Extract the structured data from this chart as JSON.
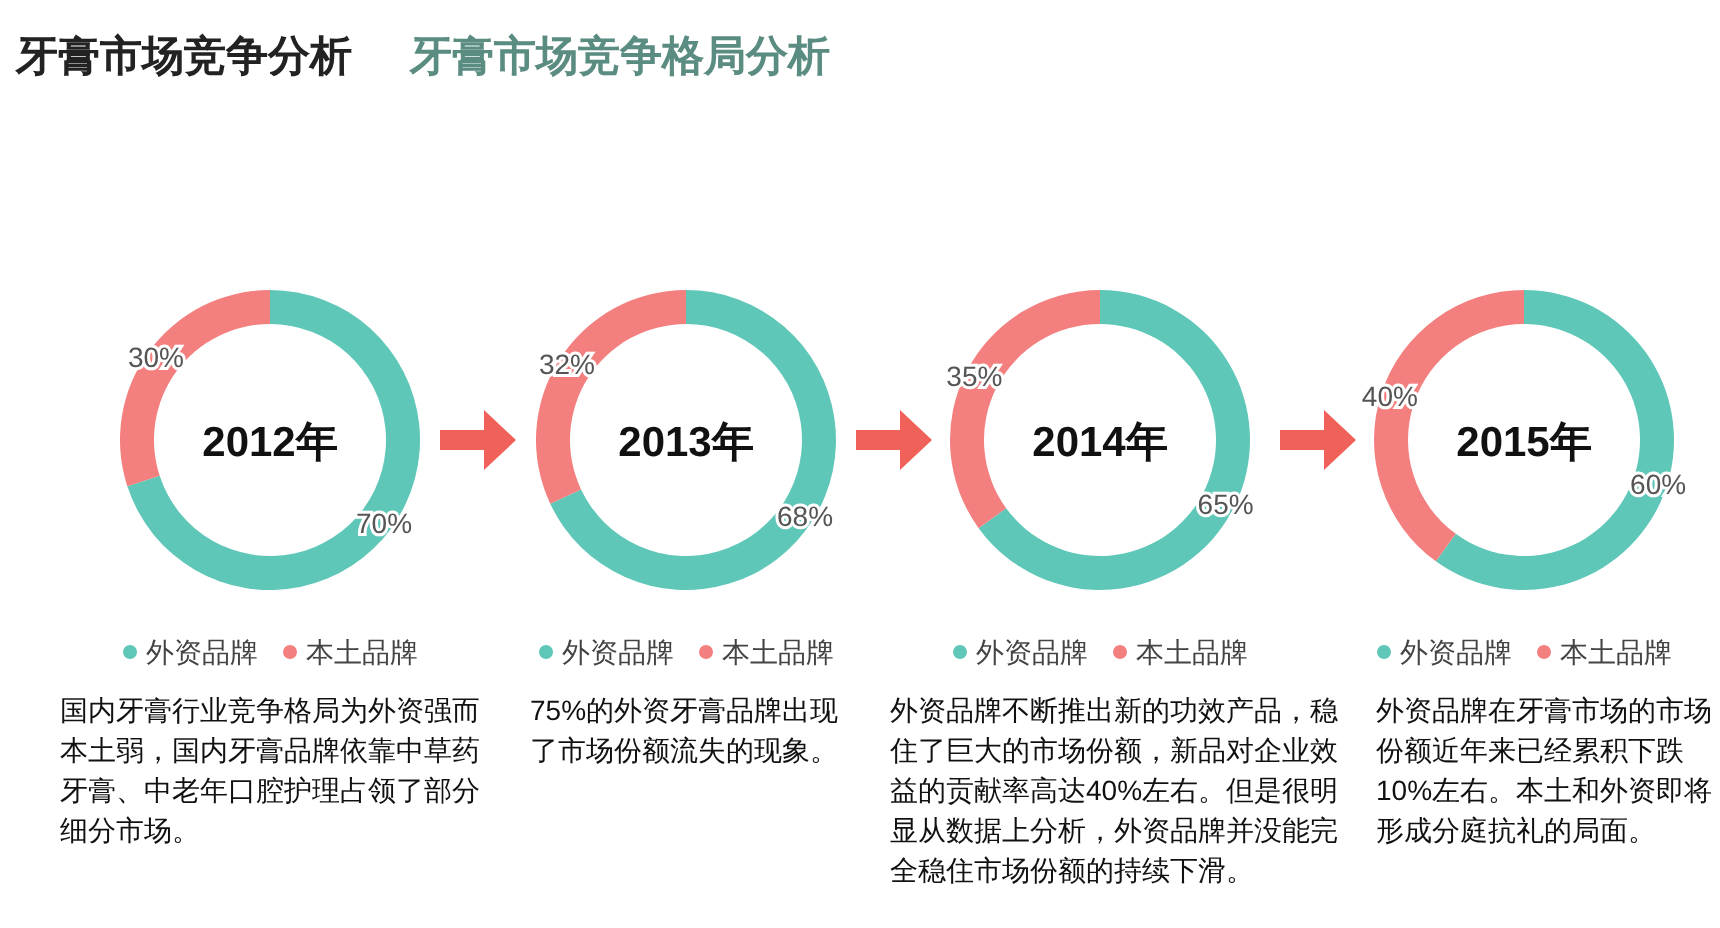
{
  "chart_data": [
    {
      "type": "other",
      "title": "牙膏市场竞争分析",
      "subtitle": "牙膏市场竞争格局分析"
    },
    {
      "type": "donut",
      "categories": [
        "外资品牌",
        "本土品牌"
      ],
      "values": [
        70,
        30
      ],
      "colors": [
        "#5ec7b8",
        "#f47f7f"
      ],
      "value_labels": [
        "70%",
        "30%"
      ],
      "legend": "bottom",
      "annotations": [
        "2012年",
        "国内牙膏行业竞争格局为外资强而本土弱，国内牙膏品牌依靠中草药牙膏、中老年口腔护理占领了部分细分市场。"
      ]
    },
    {
      "type": "donut",
      "categories": [
        "外资品牌",
        "本土品牌"
      ],
      "values": [
        68,
        32
      ],
      "colors": [
        "#5ec7b8",
        "#f47f7f"
      ],
      "value_labels": [
        "68%",
        "32%"
      ],
      "legend": "bottom",
      "annotations": [
        "2013年",
        "75%的外资牙膏品牌出现了市场份额流失的现象。"
      ]
    },
    {
      "type": "donut",
      "categories": [
        "外资品牌",
        "本土品牌"
      ],
      "values": [
        65,
        35
      ],
      "colors": [
        "#5ec7b8",
        "#f47f7f"
      ],
      "value_labels": [
        "65%",
        "35%"
      ],
      "legend": "bottom",
      "annotations": [
        "2014年",
        "外资品牌不断推出新的功效产品，稳住了巨大的市场份额，新品对企业效益的贡献率高达40%左右。但是很明显从数据上分析，外资品牌并没能完全稳住市场份额的持续下滑。"
      ]
    },
    {
      "type": "donut",
      "categories": [
        "外资品牌",
        "本土品牌"
      ],
      "values": [
        60,
        40
      ],
      "colors": [
        "#5ec7b8",
        "#f47f7f"
      ],
      "value_labels": [
        "60%",
        "40%"
      ],
      "legend": "bottom",
      "annotations": [
        "2015年",
        "外资品牌在牙膏市场的市场份额近年来已经累积下跌10%左右。本土和外资即将形成分庭抗礼的局面。"
      ]
    }
  ]
}
